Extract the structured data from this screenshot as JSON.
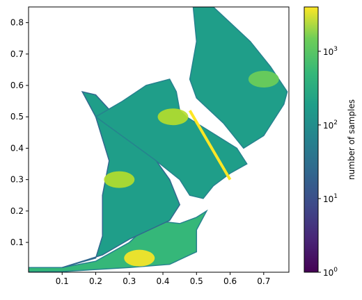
{
  "chart_data": {
    "type": "heatmap",
    "title": "",
    "xlabel": "",
    "ylabel": "",
    "xlim": [
      0.0,
      0.775
    ],
    "ylim": [
      0.005,
      0.85
    ],
    "x_ticks": [
      {
        "value": 0.1,
        "label": "0.1"
      },
      {
        "value": 0.2,
        "label": "0.2"
      },
      {
        "value": 0.3,
        "label": "0.3"
      },
      {
        "value": 0.4,
        "label": "0.4"
      },
      {
        "value": 0.5,
        "label": "0.5"
      },
      {
        "value": 0.6,
        "label": "0.6"
      },
      {
        "value": 0.7,
        "label": "0.7"
      }
    ],
    "y_ticks": [
      {
        "value": 0.1,
        "label": "0.1"
      },
      {
        "value": 0.2,
        "label": "0.2"
      },
      {
        "value": 0.3,
        "label": "0.3"
      },
      {
        "value": 0.4,
        "label": "0.4"
      },
      {
        "value": 0.5,
        "label": "0.5"
      },
      {
        "value": 0.6,
        "label": "0.6"
      },
      {
        "value": 0.7,
        "label": "0.7"
      },
      {
        "value": 0.8,
        "label": "0.8"
      }
    ],
    "colormap": "viridis",
    "color_scale": "log",
    "colorbar": {
      "label": "number of samples",
      "range": [
        1,
        4000
      ],
      "ticks": [
        {
          "value": 1,
          "base": "10",
          "exp": "0"
        },
        {
          "value": 10,
          "base": "10",
          "exp": "1"
        },
        {
          "value": 100,
          "base": "10",
          "exp": "2"
        },
        {
          "value": 1000,
          "base": "10",
          "exp": "3"
        }
      ]
    },
    "grid": false,
    "regions": [
      {
        "name": "bottom-band",
        "points": [
          [
            0.0,
            0.006
          ],
          [
            0.0,
            0.02
          ],
          [
            0.1,
            0.02
          ],
          [
            0.2,
            0.04
          ],
          [
            0.3,
            0.1
          ],
          [
            0.37,
            0.17
          ],
          [
            0.45,
            0.16
          ],
          [
            0.5,
            0.18
          ],
          [
            0.53,
            0.2
          ],
          [
            0.5,
            0.14
          ],
          [
            0.5,
            0.07
          ],
          [
            0.48,
            0.06
          ],
          [
            0.42,
            0.03
          ],
          [
            0.3,
            0.02
          ],
          [
            0.1,
            0.007
          ]
        ],
        "intensity": 0.62
      },
      {
        "name": "left-arm",
        "points": [
          [
            0.1,
            0.02
          ],
          [
            0.2,
            0.05
          ],
          [
            0.22,
            0.12
          ],
          [
            0.22,
            0.25
          ],
          [
            0.24,
            0.36
          ],
          [
            0.2,
            0.5
          ],
          [
            0.16,
            0.58
          ],
          [
            0.2,
            0.57
          ],
          [
            0.26,
            0.5
          ],
          [
            0.32,
            0.42
          ],
          [
            0.38,
            0.36
          ],
          [
            0.42,
            0.3
          ],
          [
            0.45,
            0.22
          ],
          [
            0.42,
            0.17
          ],
          [
            0.3,
            0.11
          ],
          [
            0.22,
            0.06
          ]
        ],
        "intensity": 0.55
      },
      {
        "name": "middle-fan",
        "points": [
          [
            0.2,
            0.5
          ],
          [
            0.28,
            0.55
          ],
          [
            0.35,
            0.6
          ],
          [
            0.42,
            0.62
          ],
          [
            0.44,
            0.58
          ],
          [
            0.45,
            0.52
          ],
          [
            0.47,
            0.5
          ],
          [
            0.5,
            0.48
          ],
          [
            0.56,
            0.44
          ],
          [
            0.62,
            0.4
          ],
          [
            0.65,
            0.35
          ],
          [
            0.6,
            0.32
          ],
          [
            0.55,
            0.28
          ],
          [
            0.52,
            0.24
          ],
          [
            0.48,
            0.25
          ],
          [
            0.45,
            0.3
          ],
          [
            0.38,
            0.36
          ]
        ],
        "intensity": 0.6
      },
      {
        "name": "upper-right-lobe",
        "points": [
          [
            0.49,
            0.85
          ],
          [
            0.5,
            0.74
          ],
          [
            0.48,
            0.62
          ],
          [
            0.5,
            0.56
          ],
          [
            0.58,
            0.48
          ],
          [
            0.64,
            0.4
          ],
          [
            0.7,
            0.44
          ],
          [
            0.76,
            0.54
          ],
          [
            0.77,
            0.58
          ],
          [
            0.72,
            0.66
          ],
          [
            0.66,
            0.74
          ],
          [
            0.6,
            0.8
          ],
          [
            0.55,
            0.85
          ]
        ],
        "intensity": 0.58
      }
    ],
    "hotspots": [
      {
        "name": "bottom-peak",
        "x": 0.33,
        "y": 0.05,
        "intensity": 0.95
      },
      {
        "name": "left-peak",
        "x": 0.27,
        "y": 0.3,
        "intensity": 0.88
      },
      {
        "name": "mid-peak",
        "x": 0.43,
        "y": 0.5,
        "intensity": 0.84
      },
      {
        "name": "right-peak",
        "x": 0.7,
        "y": 0.62,
        "intensity": 0.8
      }
    ],
    "ridge": {
      "from": [
        0.48,
        0.52
      ],
      "to": [
        0.6,
        0.3
      ],
      "intensity": 0.97
    }
  }
}
